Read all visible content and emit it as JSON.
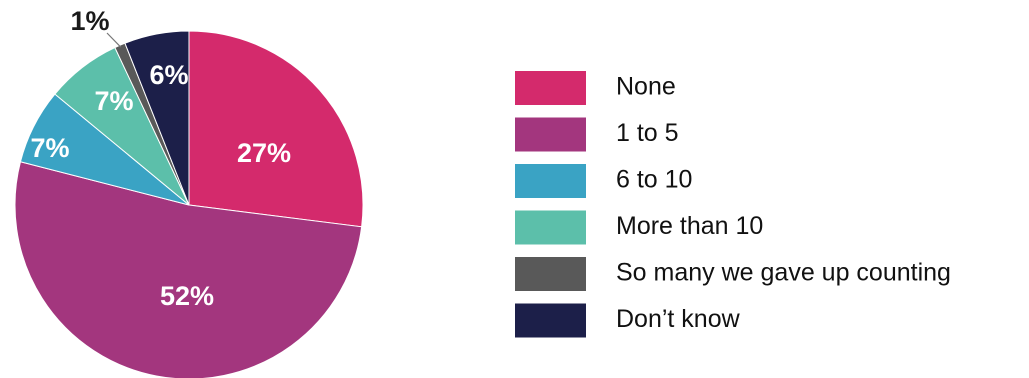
{
  "chart_data": {
    "type": "pie",
    "categories": [
      "None",
      "1 to 5",
      "6 to 10",
      "More than 10",
      "So many we gave up counting",
      "Don’t know"
    ],
    "values": [
      27,
      52,
      7,
      7,
      1,
      6
    ],
    "labels": [
      "27%",
      "52%",
      "7%",
      "7%",
      "1%",
      "6%"
    ],
    "colors": [
      "#d42a6c",
      "#a3367e",
      "#3aa3c4",
      "#5cbfaa",
      "#595959",
      "#1c1f49"
    ],
    "start_angle_deg": 0,
    "direction": "clockwise",
    "legend_position": "right"
  }
}
